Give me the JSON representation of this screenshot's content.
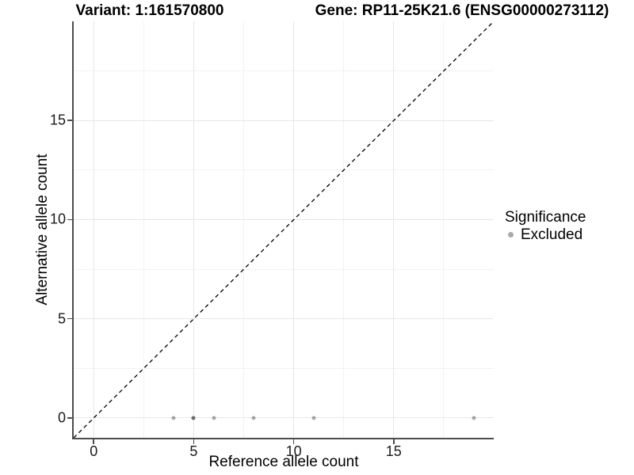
{
  "titles": {
    "variant": "Variant: 1:161570800",
    "gene": "Gene: RP11-25K21.6 (ENSG00000273112)"
  },
  "colors": {
    "axis_line": "#4d4d4d",
    "grid_major": "#e7e7e7",
    "grid_minor": "#f2f2f2",
    "tick_text": "#1a1a1a",
    "point": "#aaaaaa",
    "reference_line": "#000000"
  },
  "chart_data": {
    "type": "scatter",
    "xlabel": "Reference allele count",
    "ylabel": "Alternative allele count",
    "xlim": [
      -1,
      20
    ],
    "ylim": [
      -1,
      20
    ],
    "x_major_ticks": [
      0,
      5,
      10,
      15
    ],
    "y_major_ticks": [
      0,
      5,
      10,
      15
    ],
    "x_minor_gridlines": [
      2.5,
      7.5,
      12.5,
      17.5
    ],
    "y_minor_gridlines": [
      2.5,
      7.5,
      12.5,
      17.5
    ],
    "grid": "major+minor",
    "series": [
      {
        "name": "Excluded",
        "color": "#aaaaaa",
        "points": [
          [
            4,
            0
          ],
          [
            5,
            0
          ],
          [
            5,
            0
          ],
          [
            6,
            0
          ],
          [
            8,
            0
          ],
          [
            11,
            0
          ],
          [
            19,
            0
          ]
        ]
      }
    ],
    "reference_line": {
      "equation": "y = x",
      "style": "dashed",
      "color": "#000000",
      "from": [
        -1,
        -1
      ],
      "to": [
        20,
        20
      ]
    },
    "legend": {
      "title": "Significance",
      "position": "right",
      "items": [
        {
          "label": "Excluded",
          "color": "#aaaaaa",
          "marker": "circle"
        }
      ]
    }
  }
}
